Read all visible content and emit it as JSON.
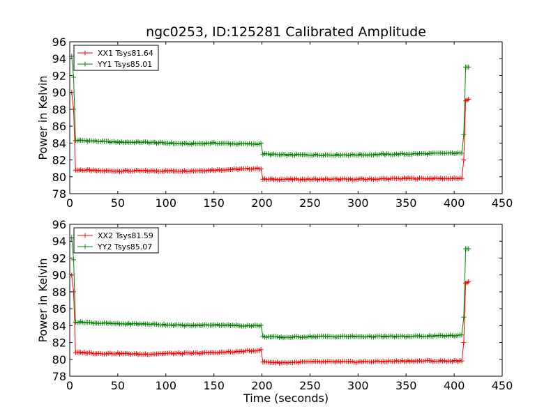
{
  "chart_data": [
    {
      "type": "line",
      "title": "ngc0253, ID:125281 Calibrated Amplitude",
      "xlabel": "",
      "ylabel": "Power in Kelvin",
      "xlim": [
        0,
        450
      ],
      "ylim": [
        78,
        96
      ],
      "xticks": [
        0,
        50,
        100,
        150,
        200,
        250,
        300,
        350,
        400,
        450
      ],
      "yticks": [
        78,
        80,
        82,
        84,
        86,
        88,
        90,
        92,
        94,
        96
      ],
      "legend_position": "top-left",
      "series": [
        {
          "name": "XX1 Tsys81.64",
          "color": "#ff0000",
          "x": [
            0,
            2,
            4,
            6,
            15,
            30,
            50,
            75,
            100,
            125,
            150,
            175,
            199,
            201,
            220,
            250,
            300,
            350,
            400,
            408,
            410,
            412,
            415
          ],
          "y": [
            90.0,
            90.0,
            88.0,
            80.8,
            80.8,
            80.7,
            80.7,
            80.7,
            80.7,
            80.7,
            80.8,
            80.9,
            81.0,
            79.7,
            79.7,
            79.7,
            79.7,
            79.8,
            79.8,
            79.8,
            82.0,
            89.0,
            89.2
          ]
        },
        {
          "name": "YY1 Tsys85.01",
          "color": "#008000",
          "x": [
            0,
            2,
            4,
            6,
            15,
            30,
            50,
            75,
            100,
            125,
            150,
            175,
            199,
            201,
            220,
            250,
            300,
            350,
            400,
            408,
            410,
            412,
            415
          ],
          "y": [
            94.3,
            94.3,
            91.8,
            84.3,
            84.3,
            84.2,
            84.1,
            84.1,
            84.0,
            83.9,
            84.0,
            83.9,
            83.9,
            82.7,
            82.6,
            82.6,
            82.6,
            82.7,
            82.8,
            82.8,
            85.0,
            93.0,
            93.0
          ]
        }
      ]
    },
    {
      "type": "line",
      "title": "",
      "xlabel": "Time (seconds)",
      "ylabel": "Power in Kelvin",
      "xlim": [
        0,
        450
      ],
      "ylim": [
        78,
        96
      ],
      "xticks": [
        0,
        50,
        100,
        150,
        200,
        250,
        300,
        350,
        400,
        450
      ],
      "yticks": [
        78,
        80,
        82,
        84,
        86,
        88,
        90,
        92,
        94,
        96
      ],
      "legend_position": "top-left",
      "series": [
        {
          "name": "XX2 Tsys81.59",
          "color": "#ff0000",
          "x": [
            0,
            2,
            4,
            6,
            15,
            30,
            50,
            75,
            100,
            125,
            150,
            175,
            199,
            201,
            220,
            250,
            300,
            350,
            400,
            408,
            410,
            412,
            415
          ],
          "y": [
            90.0,
            90.0,
            88.0,
            80.8,
            80.8,
            80.7,
            80.7,
            80.6,
            80.7,
            80.7,
            80.8,
            80.9,
            81.1,
            79.7,
            79.6,
            79.7,
            79.7,
            79.8,
            79.8,
            79.8,
            82.0,
            89.0,
            89.2
          ]
        },
        {
          "name": "YY2 Tsys85.07",
          "color": "#008000",
          "x": [
            0,
            2,
            4,
            6,
            15,
            30,
            50,
            75,
            100,
            125,
            150,
            175,
            199,
            201,
            220,
            250,
            300,
            350,
            400,
            408,
            410,
            412,
            415
          ],
          "y": [
            94.4,
            94.4,
            91.8,
            84.4,
            84.4,
            84.3,
            84.2,
            84.2,
            84.1,
            84.0,
            84.1,
            84.0,
            84.0,
            82.7,
            82.6,
            82.7,
            82.7,
            82.7,
            82.8,
            82.9,
            85.0,
            93.1,
            93.1
          ]
        }
      ]
    }
  ]
}
